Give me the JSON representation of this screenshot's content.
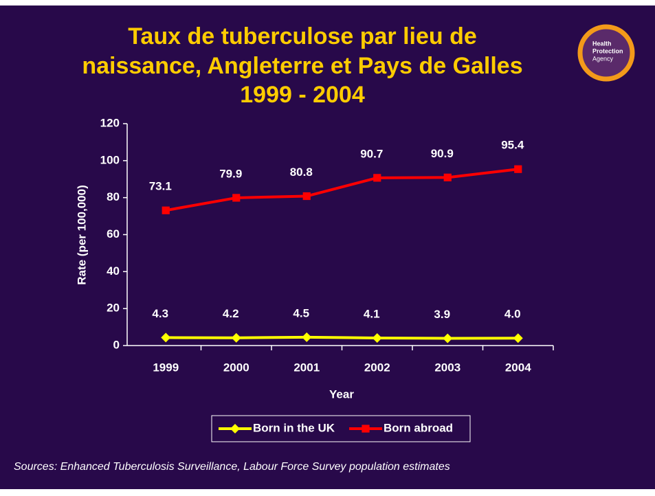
{
  "chart_data": {
    "type": "line",
    "title": [
      "Taux de tuberculose par lieu de",
      "naissance, Angleterre et Pays de Galles",
      "1999 - 2004"
    ],
    "logo": [
      "Health",
      "Protection",
      "Agency"
    ],
    "categories": [
      "1999",
      "2000",
      "2001",
      "2002",
      "2003",
      "2004"
    ],
    "series": [
      {
        "name": "Born in the UK",
        "color": "#ffff00",
        "marker": "diamond",
        "values": [
          4.3,
          4.2,
          4.5,
          4.1,
          3.9,
          4.0
        ],
        "value_labels": [
          "4.3",
          "4.2",
          "4.5",
          "4.1",
          "3.9",
          "4.0"
        ]
      },
      {
        "name": "Born abroad",
        "color": "#ff0000",
        "marker": "square",
        "values": [
          73.1,
          79.9,
          80.8,
          90.7,
          90.9,
          95.4
        ],
        "value_labels": [
          "73.1",
          "79.9",
          "80.8",
          "90.7",
          "90.9",
          "95.4"
        ]
      }
    ],
    "ylim": [
      0,
      120
    ],
    "yticks": [
      0,
      20,
      40,
      60,
      80,
      100,
      120
    ],
    "y_label": "Rate (per 100,000)",
    "x_label": "Year",
    "legend": "bottom",
    "grid": false,
    "source": "Sources: Enhanced Tuberculosis Surveillance, Labour Force Survey population estimates"
  }
}
